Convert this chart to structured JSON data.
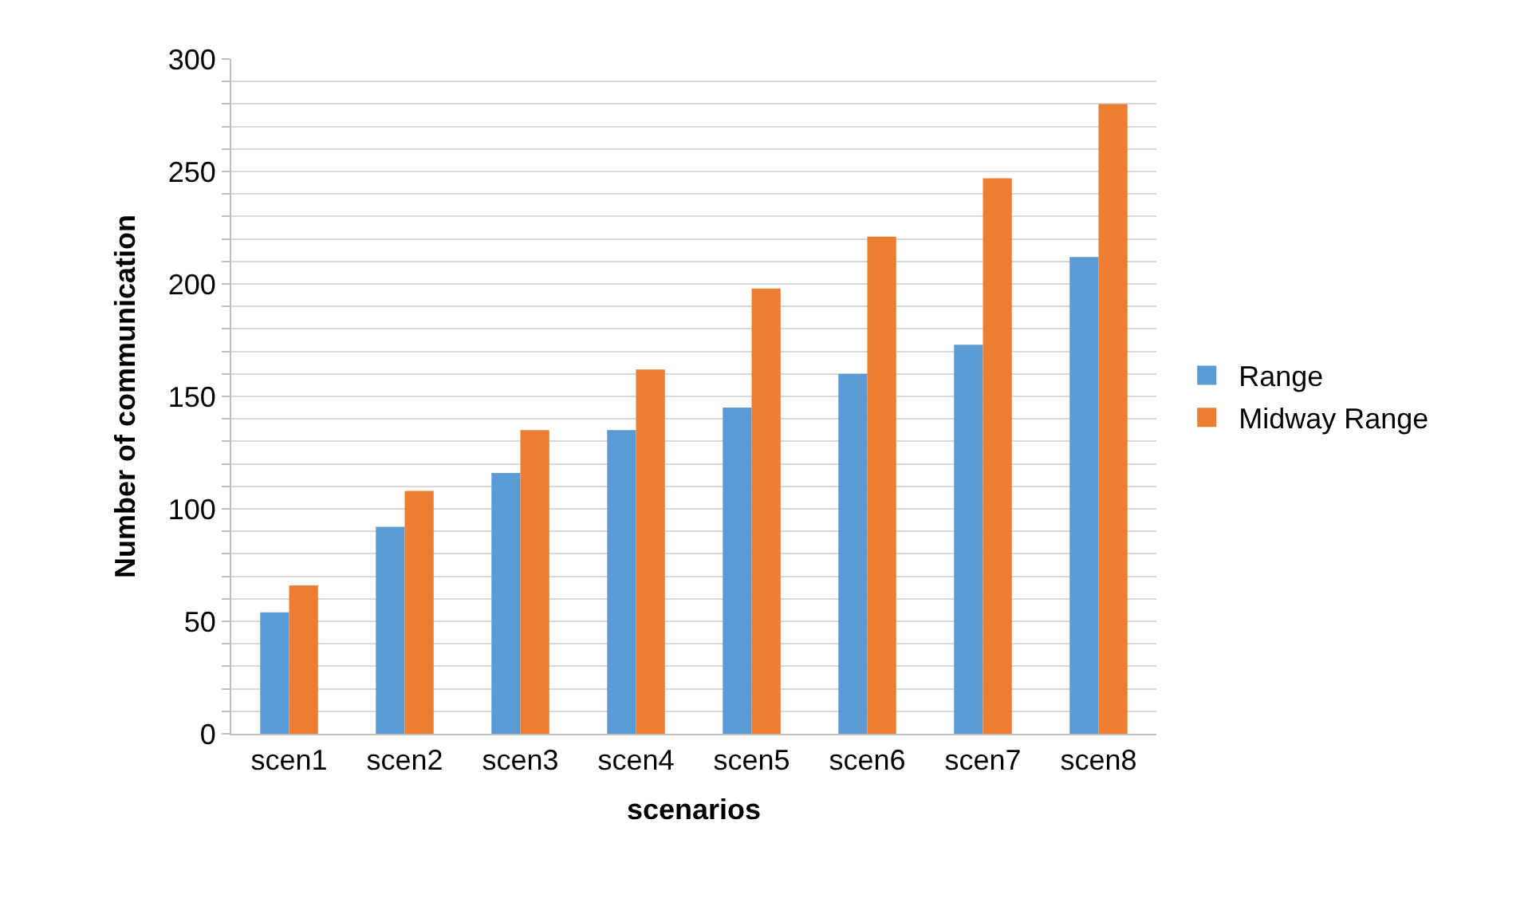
{
  "chart_data": {
    "type": "bar",
    "xlabel": "scenarios",
    "ylabel": "Number of communication",
    "categories": [
      "scen1",
      "scen2",
      "scen3",
      "scen4",
      "scen5",
      "scen6",
      "scen7",
      "scen8"
    ],
    "series": [
      {
        "name": "Range",
        "color": "#5b9bd5",
        "values": [
          54,
          92,
          116,
          135,
          145,
          160,
          173,
          212
        ]
      },
      {
        "name": "Midway Range",
        "color": "#ed7d31",
        "values": [
          66,
          108,
          135,
          162,
          198,
          221,
          247,
          280
        ]
      }
    ],
    "ylim": [
      0,
      300
    ],
    "yticks": [
      0,
      {
        "value": 10,
        "label": null
      },
      {
        "value": 20,
        "label": null
      },
      {
        "value": 30,
        "label": null
      },
      {
        "value": 40,
        "label": null
      },
      50,
      {
        "value": 60,
        "label": null
      },
      {
        "value": 70,
        "label": null
      },
      {
        "value": 80,
        "label": null
      },
      {
        "value": 90,
        "label": null
      },
      100,
      {
        "value": 110,
        "label": null
      },
      {
        "value": 120,
        "label": null
      },
      {
        "value": 130,
        "label": null
      },
      {
        "value": 140,
        "label": null
      },
      150,
      {
        "value": 160,
        "label": null
      },
      {
        "value": 170,
        "label": null
      },
      {
        "value": 180,
        "label": null
      },
      {
        "value": 190,
        "label": null
      },
      200,
      {
        "value": 210,
        "label": null
      },
      {
        "value": 220,
        "label": null
      },
      {
        "value": 230,
        "label": null
      },
      {
        "value": 240,
        "label": null
      },
      250,
      {
        "value": 260,
        "label": null
      },
      {
        "value": 270,
        "label": null
      },
      {
        "value": 280,
        "label": null
      },
      {
        "value": 290,
        "label": null
      },
      300
    ],
    "grid": "y",
    "legend": "right"
  }
}
